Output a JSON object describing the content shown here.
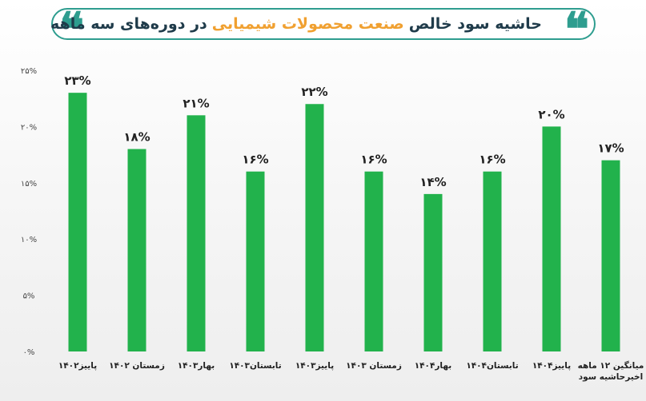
{
  "header": {
    "title_part1": "حاشیه سود خالص",
    "title_accent": "صنعت محصولات شیمیایی",
    "title_part2": "در دوره‌های سه ماهه",
    "quote_glyph": "❝"
  },
  "chart_data": {
    "type": "bar",
    "title": "حاشیه سود خالص صنعت محصولات شیمیایی در دوره‌های سه ماهه",
    "categories": [
      [
        "پاییز۱۴۰۲"
      ],
      [
        "زمستان ۱۴۰۲"
      ],
      [
        "بهار۱۴۰۳"
      ],
      [
        "تابستان۱۴۰۳"
      ],
      [
        "پاییز۱۴۰۳"
      ],
      [
        "زمستان ۱۴۰۳"
      ],
      [
        "بهار۱۴۰۴"
      ],
      [
        "تابستان۱۴۰۴"
      ],
      [
        "پاییز۱۴۰۴"
      ],
      [
        "میانگین ۱۲ ماهه",
        "اخیرحاشیه سود"
      ]
    ],
    "values": [
      23,
      18,
      21,
      16,
      22,
      16,
      14,
      16,
      20,
      17
    ],
    "value_labels": [
      "۲۳%",
      "۱۸%",
      "۲۱%",
      "۱۶%",
      "۲۲%",
      "۱۶%",
      "۱۴%",
      "۱۶%",
      "۲۰%",
      "۱۷%"
    ],
    "ylim": [
      0,
      25
    ],
    "yticks": [
      0,
      5,
      10,
      15,
      20,
      25
    ],
    "ytick_labels": [
      "۰%",
      "۵%",
      "۱۰%",
      "۱۵%",
      "۲۰%",
      "۲۵%"
    ],
    "xlabel": "",
    "ylabel": "",
    "grid": false,
    "bar_color": "#22b24c"
  }
}
